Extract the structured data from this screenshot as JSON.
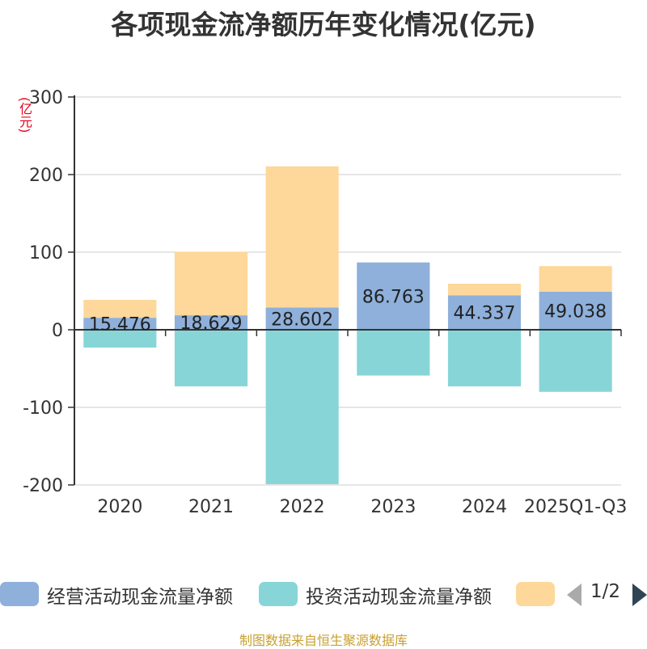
{
  "title": "各项现金流净额历年变化情况(亿元)",
  "unit_label": "(亿元)",
  "source_text": "制图数据来自恒生聚源数据库",
  "legend": {
    "items": [
      {
        "label": "经营活动现金流量净额",
        "color": "#8eb0db"
      },
      {
        "label": "投资活动现金流量净额",
        "color": "#88d5d8"
      },
      {
        "label": "",
        "color": "#fdd89a"
      }
    ],
    "pager_text": "1/2"
  },
  "chart_data": {
    "type": "bar",
    "stacked": true,
    "title": "各项现金流净额历年变化情况(亿元)",
    "ylabel": "(亿元)",
    "ylim": [
      -200,
      300
    ],
    "yticks": [
      -200,
      -100,
      0,
      100,
      200,
      300
    ],
    "grid": true,
    "legend_position": "bottom",
    "categories": [
      "2020",
      "2021",
      "2022",
      "2023",
      "2024",
      "2025Q1-Q3"
    ],
    "series": [
      {
        "name": "经营活动现金流量净额",
        "color": "#8eb0db",
        "values": [
          15.476,
          18.629,
          28.602,
          86.763,
          44.337,
          49.038
        ],
        "labels": [
          "15.476",
          "18.629",
          "28.602",
          "86.763",
          "44.337",
          "49.038"
        ]
      },
      {
        "name": "投资活动现金流量净额",
        "color": "#88d5d8",
        "values": [
          -23,
          -73,
          -199,
          -59,
          -73,
          -80
        ]
      },
      {
        "name": "",
        "color": "#fdd89a",
        "values": [
          23,
          82,
          182,
          0,
          15,
          33
        ]
      }
    ]
  }
}
